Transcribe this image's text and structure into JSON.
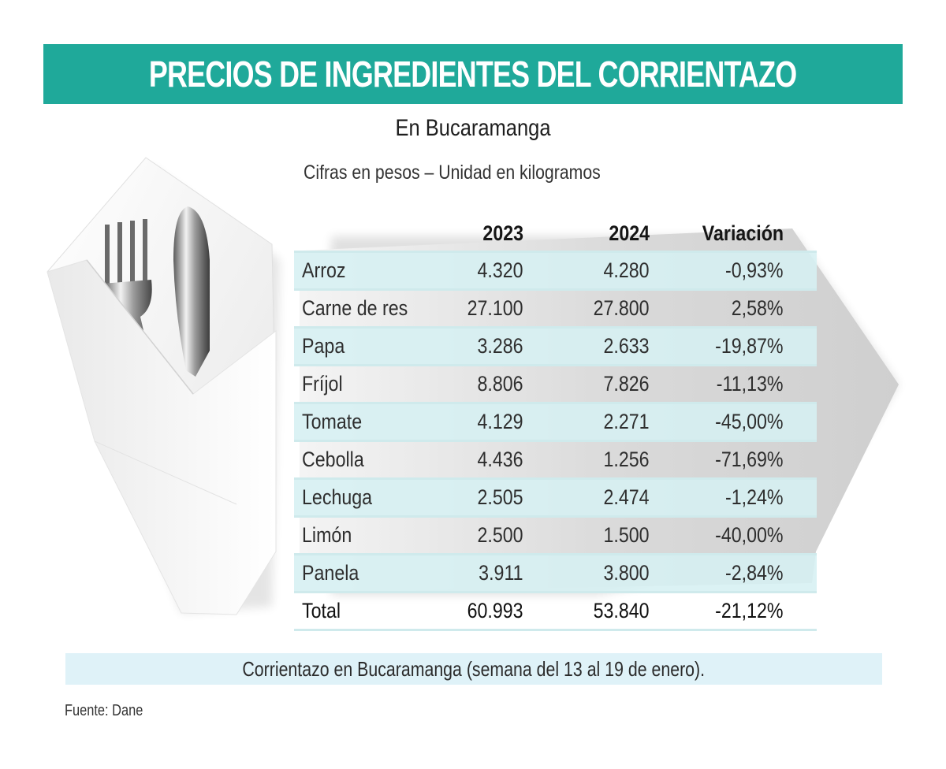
{
  "header": {
    "title": "PRECIOS DE INGREDIENTES DEL CORRIENTAZO",
    "subtitle": "En Bucaramanga",
    "units_note": "Cifras en pesos – Unidad en kilogramos"
  },
  "colors": {
    "title_bar": "#1fa99a",
    "row_highlight": "#d6f0f3",
    "footer_bar": "#dff2f8"
  },
  "illustration": {
    "icons": [
      "napkin-icon",
      "fork-icon",
      "knife-icon"
    ]
  },
  "chart_data": {
    "type": "table",
    "title": "PRECIOS DE INGREDIENTES DEL CORRIENTAZO",
    "subtitle": "En Bucaramanga",
    "note": "Cifras en pesos – Unidad en kilogramos",
    "columns": [
      "",
      "2023",
      "2024",
      "Variación"
    ],
    "rows": [
      {
        "name": "Arroz",
        "y2023": "4.320",
        "y2024": "4.280",
        "variation": "-0,93%"
      },
      {
        "name": "Carne de res",
        "y2023": "27.100",
        "y2024": "27.800",
        "variation": "2,58%"
      },
      {
        "name": "Papa",
        "y2023": "3.286",
        "y2024": "2.633",
        "variation": "-19,87%"
      },
      {
        "name": "Fríjol",
        "y2023": "8.806",
        "y2024": "7.826",
        "variation": "-11,13%"
      },
      {
        "name": "Tomate",
        "y2023": "4.129",
        "y2024": "2.271",
        "variation": "-45,00%"
      },
      {
        "name": "Cebolla",
        "y2023": "4.436",
        "y2024": "1.256",
        "variation": "-71,69%"
      },
      {
        "name": "Lechuga",
        "y2023": "2.505",
        "y2024": "2.474",
        "variation": "-1,24%"
      },
      {
        "name": "Limón",
        "y2023": "2.500",
        "y2024": "1.500",
        "variation": "-40,00%"
      },
      {
        "name": "Panela",
        "y2023": "3.911",
        "y2024": "3.800",
        "variation": "-2,84%"
      }
    ],
    "total": {
      "name": "Total",
      "y2023": "60.993",
      "y2024": "53.840",
      "variation": "-21,12%"
    },
    "caption": "Corrientazo en Bucaramanga (semana del 13 al 19 de enero).",
    "source": "Fuente: Dane"
  }
}
